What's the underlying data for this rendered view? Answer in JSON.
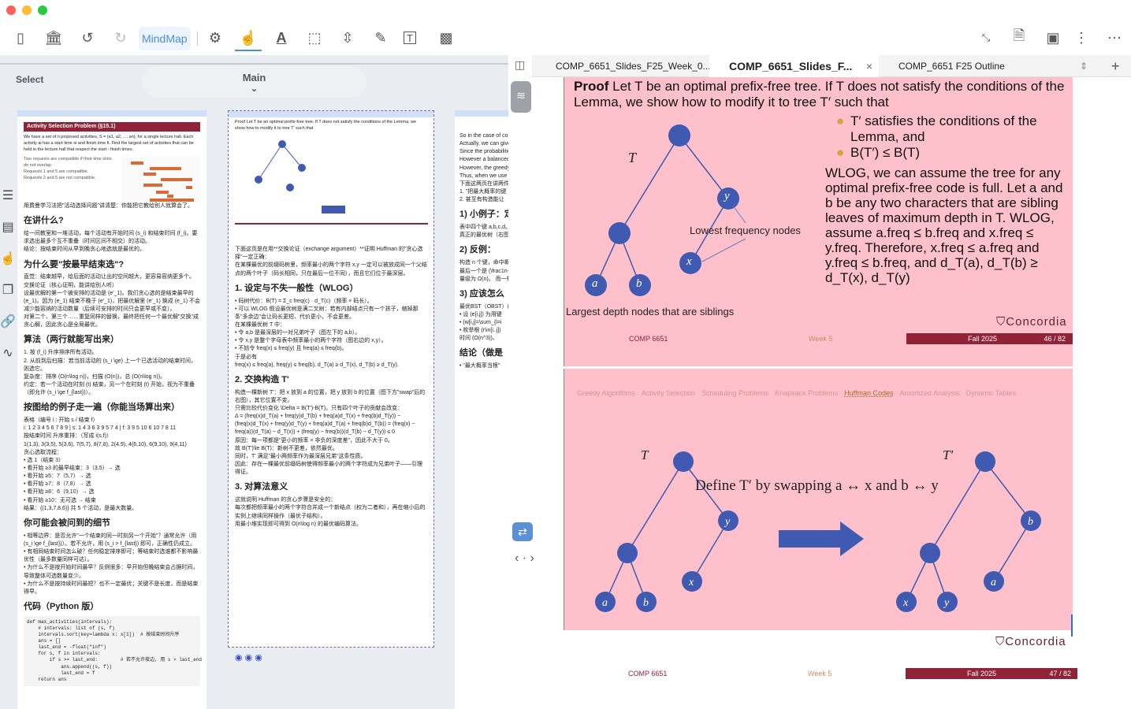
{
  "toolbar": {
    "mindmap_label": "MindMap"
  },
  "left_pane": {
    "section_label": "Main",
    "select_label": "Select",
    "page1": {
      "header": "Activity Selection Problem (§15.1)",
      "intro": "We have a set of n proposed activities, S = {a1, a2, ..., an}, for a single lecture hall. Each activity ai has a start time si and finish time fi. Find the largest set of activities that can be held in the lecture hall that respect the start - finish times.",
      "compat": [
        "Two requests are compatible if their time slots do not overlap.",
        "Requests 1 and 5 are compatible.",
        "Requests 2 and 5 are not compatible."
      ],
      "lines": [
        "用费曼学习法把\"活动选择问题\"讲清楚：你能把它教给别人就算会了。",
        {
          "h": "在讲什么?"
        },
        "给一间教室和一堆活动，每个活动有开始时间 (s_i) 和结束时间 (f_i)。要求选出最多个互不重叠（时间区间不相交）的活动。",
        "结论：按结束时间从早到晚贪心地选就是最优的。",
        {
          "h": "为什么要\"按最早结束选\"?"
        },
        "直觉：结束越早，给后面的活动让出的空间越大，更容易容纳更多个。",
        "交换论证（核心证明，能讲给别人听）",
        "设最优解的第一个被安排的活动是 (e'_1)。我们贪心选的是结束最早的 (e_1)。因为 (e_1) 结束不晚于 (e'_1)，把最优解里 (e'_1) 换成 (e_1) 不会减少能容纳的活动数量（后续可安排的时间只会更早或不变）。",
        "对第二个、第三个……重复同样的替换，最终把任何一个最优解\"交换\"成贪心解，因此贪心是全局最优。",
        {
          "h": "算法（两行就能写出来）"
        },
        "1. 按 (f_i) 升序排序所有活动。",
        "2. 从前到后扫描：若当前活动的 (s_i \\ge) 上一个已选活动的结束时间，则选它。",
        "复杂度：排序 (O(n\\log n))，扫描 (O(n))，总 (O(n\\log n))。",
        "约定：若一个活动在时刻 (t) 结束，另一个在时刻 (t) 开始，视为不重叠（即允许 (s_i \\ge f_{last})）。",
        {
          "h": "按图给的例子走一遍（你能当场算出来）"
        },
        "表格（编号 i : 开始 s / 结束 f）",
        "i: 1 2 3 4 5 6 7 8 9 | s: 1 4 3 6 3 9 5 7 4 | f: 3 9 5 10 6 10 7 8 11",
        "按结束时间 升序重排：（写成 i(s,f)）",
        "1(1,3), 3(3,5), 5(3,6), 7(5,7), 8(7,8), 2(4,9), 4(6,10), 6(9,10), 9(4,11)",
        "贪心选取流程：",
        "• 选 1（结束 3）",
        "• 看开始 ≥3 的最早结束：3（3,5）→ 选",
        "• 看开始 ≥5：7（5,7）→ 选",
        "• 看开始 ≥7：8（7,8）→ 选",
        "• 看开始 ≥8：6（9,10）→ 选",
        "• 看开始 ≥10：无可选 → 结束",
        "结果：{(1,3,7,8,6)} 共 5 个活动，是最大数量。",
        {
          "h": "你可能会被问到的细节"
        },
        "• 相等边界：是否允许\"一个结束的同一时刻另一个开始\"？通常允许（用 (s_i \\ge f_{last})）。若不允许，用 (s_i > f_{last}) 即可，正确性仍成立。",
        "• 有相同结束时间怎么破？任何稳定排序即可；等结束时选谁都不影响最优性（最多数量同样可达）。",
        "• 为什么不是按开始时间最早？反例很多：早开始但晚结束会占据时间，导致整体可选数量变少。",
        "• 为什么不是按持续时间最短？也不一定最优；关键不是长度，而是结束得早。",
        {
          "h": "代码（Python 版）"
        }
      ],
      "code": "def max_activities(intervals):\n    # intervals: list of (s, f)\n    intervals.sort(key=lambda x: x[1])  # 按结束时间升序\n    ans = []\n    last_end = -float(\"inf\")\n    for s, f in intervals:\n        if s >= last_end:        # 若不允许接边, 用 s > last_end\n            ans.append((s, f))\n            last_end = f\n    return ans"
    },
    "page2": {
      "slide_text": "Proof Let T be an optimal prefix-free tree. If T does not satisfy the conditions of the Lemma, we show how to modify it to tree T' such that",
      "lines": [
        "下面这页是在用**交换论证（exchange argument）**证明 Huffman 的\"贪心选择\"一定正确：",
        "在某棵最优的前缀码树里，频率最小的两个字符 x,y 一定可以被放成同一个父结点的两个叶子（码长相同，只在最后一位不同），而且它们位于最深层。",
        {
          "h": "1. 设定与不失一般性（WLOG）"
        },
        "• 码树代价：B(T) = Σ_c freq(c) · d_T(c)（频率 × 码长）。",
        "• 可以 WLOG 假设最优树是满二叉树：若有内部结点只有一个孩子，缩掉那条\"多余边\"会让码长更短、代价更小，不会更差。",
        "在某棵最优树 T 中：",
        "• 令 a,b 是最深层的一对兄弟叶子（图左下的 a,b）。",
        "• 令 x,y 是整个字母表中频率最小的两个字符（图右边的 x,y）。",
        "• 不妨令 freq(x) ≤ freq(y) 且 freq(a) ≤ freq(b)。",
        "于是必有",
        "freq(x) ≤ freq(a),   freq(y) ≤ freq(b),   d_T(a) ≥ d_T(x),   d_T(b) ≥ d_T(y).",
        {
          "h": "2. 交换构造 T'"
        },
        "构造一棵新树 T'：把 x 放到 a 的位置，把 y 放到 b 的位置（图下方\"swap\"后的右图），其它位置不变。",
        "只需比较代价变化 \\Delta = B(T')-B(T)。只有四个叶子的贡献会改变：",
        "Δ = (freq(x)d_T(a) + freq(y)d_T(b) + freq(a)d_T(x) + freq(b)d_T(y)) − (freq(x)d_T(x) + freq(y)d_T(y) + freq(a)d_T(a) + freq(b)d_T(b)) = (freq(x) − freq(a))(d_T(a) − d_T(x)) + (freq(y) − freq(b))(d_T(b) − d_T(y)) ≤ 0",
        "原因：每一项都是\"更小的频率 × 非负的深度差\"，因此不大于 0。",
        "故 B(T')\\le B(T)：新树不更差，依然最优。",
        "同时，T' 满足\"最小两频率作为最深层兄弟\"这条性质。",
        "因此：存在一棵最优前缀码树使得频率最小的两个字符成为兄弟叶子——引理得证。",
        {
          "h": "3. 对算法意义"
        },
        "这就说明 Huffman 的贪心步骤是安全的：",
        "每次都把频率最小的两个字符合并成一个新结点（权为二者和），再在缩小后的实例上继续同样操作（最优子结构）。",
        "用最小堆实现即可得到 O(n\\log n) 的最优编码算法。"
      ]
    },
    "page3": {
      "lines": [
        "So in the case of consi optimal solution.",
        "Actually, we can give a",
        "Since the probabilities",
        "However a balanced BS good approximation of",
        "However, the greedy a",
        "Thus, when we use the appropriate for the giv",
        "下面这两页在讲两件",
        "1. \"把最大概率的键",
        "2. 甚至有构造能让",
        {
          "h": "1) 小例子：定最优"
        },
        "表中四个键 a,b,c,d。贪心做法：选最大概 BST\"。",
        "真正的最优树（右图 右子。0.15 最深。原因：期望代价 = Σ 率×1 的代价，但同时 贪心只看\"让当前最大 全局代价，因此不一",
        {
          "h": "2) 反例："
        },
        "构造 n 个键，命中概",
        "最后一个是 (\\frac1n- 因为\"最大概率当根\"， 形状，因此每次都选 单链表的期望代",
        "量级为 Ω(n)。 而一棵\"比较平衡\"的 所以这个反例 Ω(n))",
        {
          "h": "3) 应该怎么"
        },
        "最优BST（OBST）( 邻键之间的失败搜索 经典解法是动态规划",
        "• 设 (e[i,j]) 为用键",
        "• (w[i,j]=\\sum_{l=i",
        "• 枚举根 (r\\in[i..j])",
        "时间 (O(n^3))、",
        {
          "h": "结论（做是"
        },
        "• \"最大概率当根\""
      ]
    }
  },
  "tabs": [
    {
      "label": "COMP_6651_Slides_F25_Week_0...",
      "active": false
    },
    {
      "label": "COMP_6651_Slides_F...",
      "active": true
    },
    {
      "label": "COMP_6651 F25 Outline",
      "active": false
    }
  ],
  "slide1": {
    "proof_bold": "Proof",
    "proof_text": " Let T be an optimal prefix-free tree. If T does not satisfy the conditions of the Lemma, we show how to modify it to tree T′ such that",
    "bullets": [
      "T′ satisfies the conditions of the Lemma, and",
      "B(T′) ≤ B(T)"
    ],
    "para": "WLOG, we can assume the tree for any optimal prefix-free code is full. Let a and b be any two characters that are sibling leaves of maximum depth in T. WLOG, assume a.freq ≤ b.freq and x.freq ≤ y.freq. Therefore, x.freq ≤ a.freq and y.freq ≤ b.freq, and d_T(a), d_T(b) ≥ d_T(x), d_T(y)",
    "tree_label": "T",
    "lowest_label": "Lowest frequency nodes",
    "largest_label": "Largest depth nodes that are siblings",
    "nodes": {
      "a": "a",
      "b": "b",
      "x": "x",
      "y": "y"
    },
    "footer": {
      "course": "COMP 6651",
      "week": "Week 5",
      "term": "Fall 2025",
      "page": "46 / 82"
    },
    "logo": "Concordia"
  },
  "slide2": {
    "nav": [
      "Greedy Algorithms",
      "Activity Selection",
      "Scheduling Problems",
      "Knapsack Problems",
      "Huffman Codes",
      "Amortized Analysis",
      "Dynamic Tables"
    ],
    "active_nav": "Huffman Codes",
    "left_tree": "T",
    "right_tree": "T′",
    "caption": "Define T′ by swapping a ↔ x and b ↔ y",
    "footer": {
      "course": "COMP 6651",
      "week": "Week 5",
      "term": "Fall 2025",
      "page": "47 / 82"
    },
    "logo": "Concordia"
  },
  "colors": {
    "slide_bg": "#fec0cb",
    "maroon": "#912338",
    "node": "#3f5ab0",
    "accent": "#4a8fe0"
  }
}
